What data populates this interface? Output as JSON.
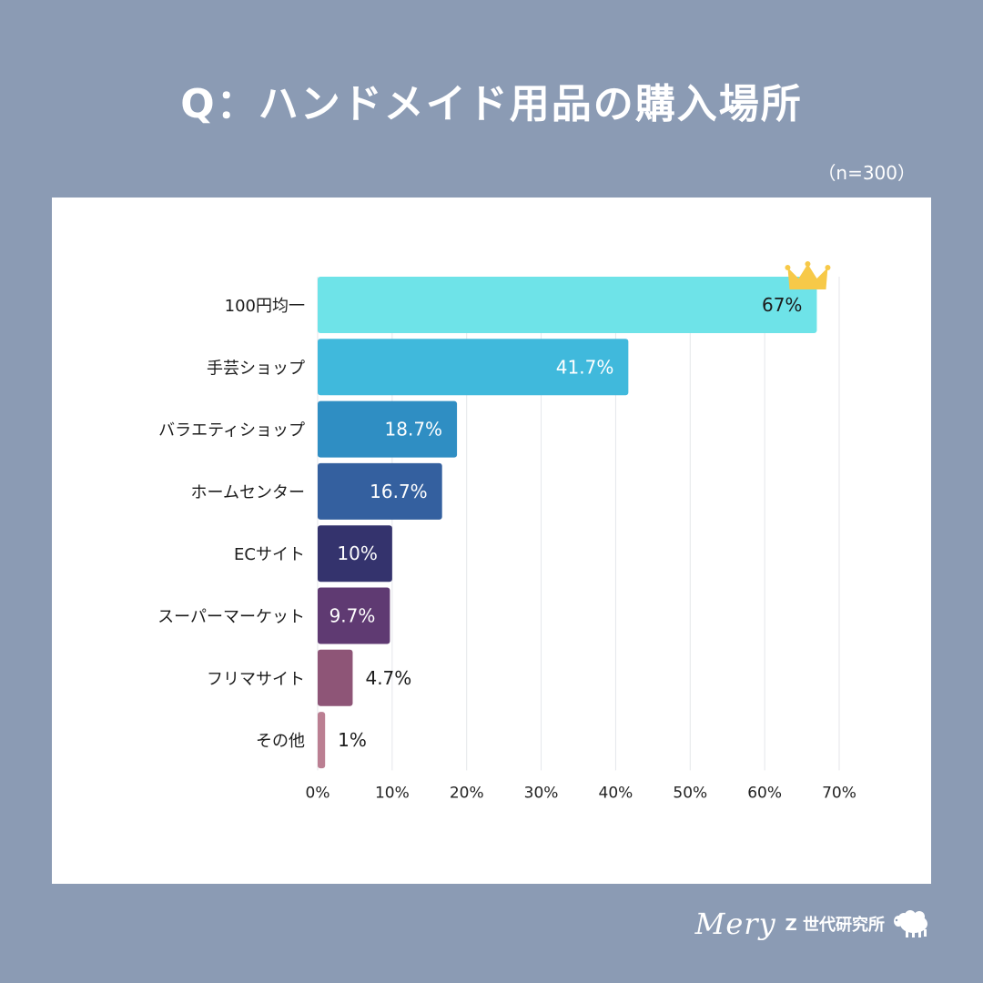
{
  "page": {
    "title": "Q：ハンドメイド用品の購入場所",
    "sample_size": "（n=300）",
    "brand_script": "Mery",
    "brand_text": "Z 世代研究所",
    "top_item_icon": "crown-icon"
  },
  "colors": {
    "background": "#8b9bb4",
    "card": "#ffffff",
    "crown": "#f7c948",
    "bars": [
      "#6ee3e8",
      "#40b9dc",
      "#2f8ec3",
      "#34609f",
      "#34336d",
      "#5f3a72",
      "#8e5577",
      "#bb7f92"
    ]
  },
  "chart_data": {
    "type": "bar",
    "orientation": "horizontal",
    "categories": [
      "100円均一",
      "手芸ショップ",
      "バラエティショップ",
      "ホームセンター",
      "ECサイト",
      "スーパーマーケット",
      "フリマサイト",
      "その他"
    ],
    "values": [
      67,
      41.7,
      18.7,
      16.7,
      10,
      9.7,
      4.7,
      1
    ],
    "value_labels": [
      "67%",
      "41.7%",
      "18.7%",
      "16.7%",
      "10%",
      "9.7%",
      "4.7%",
      "1%"
    ],
    "x_ticks": [
      "0%",
      "10%",
      "20%",
      "30%",
      "40%",
      "50%",
      "60%",
      "70%"
    ],
    "xlim": [
      0,
      70
    ],
    "grid": true
  }
}
